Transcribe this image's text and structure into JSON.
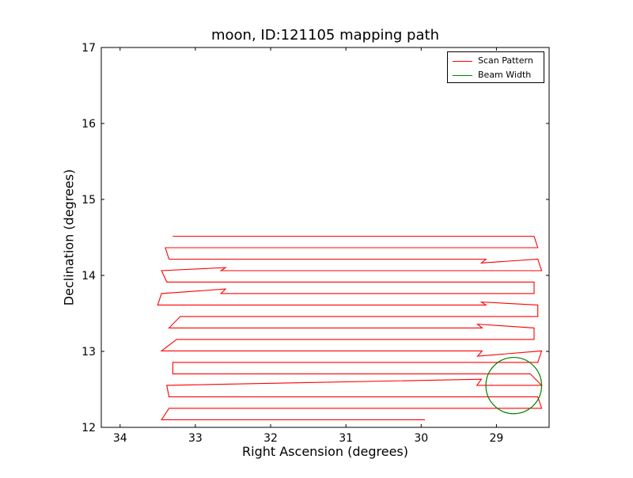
{
  "chart_data": {
    "type": "line",
    "title": "moon, ID:121105 mapping path",
    "xlabel": "Right Ascension (degrees)",
    "ylabel": "Declination (degrees)",
    "xlim": [
      34.25,
      28.3
    ],
    "ylim": [
      12,
      17
    ],
    "x_ticks": [
      34,
      33,
      32,
      31,
      30,
      29
    ],
    "y_ticks": [
      12,
      13,
      14,
      15,
      16,
      17
    ],
    "x_tick_labels": [
      "34",
      "33",
      "32",
      "31",
      "30",
      "29"
    ],
    "y_tick_labels": [
      "12",
      "13",
      "14",
      "15",
      "16",
      "17"
    ],
    "grid": false,
    "legend_position": "top-right",
    "series": [
      {
        "name": "Scan Pattern",
        "color": "#ff0000",
        "kind": "raster-scan",
        "start": {
          "x": 29.95,
          "y": 12.1
        },
        "row_y_start": 12.1,
        "row_step": 0.151,
        "row_count": 17,
        "row_left": [
          33.45,
          33.35,
          33.35,
          33.38,
          33.3,
          33.3,
          33.45,
          33.25,
          33.35,
          33.2,
          33.5,
          33.45,
          33.38,
          33.45,
          33.35,
          33.4,
          33.3
        ],
        "row_right": [
          28.5,
          28.4,
          28.45,
          28.4,
          28.55,
          28.45,
          28.4,
          28.5,
          28.5,
          28.45,
          28.45,
          28.5,
          28.5,
          28.4,
          28.45,
          28.45,
          28.5
        ],
        "kinks": [
          {
            "row": 3,
            "x": 29.2,
            "dy": 0.08
          },
          {
            "row": 6,
            "x": 29.25,
            "dy": -0.07
          },
          {
            "row": 8,
            "x": 29.25,
            "dy": 0.05
          },
          {
            "row": 10,
            "x": 29.2,
            "dy": 0.04
          },
          {
            "row": 11,
            "x": 32.6,
            "dy": 0.06
          },
          {
            "row": 13,
            "x": 32.6,
            "dy": 0.04
          },
          {
            "row": 14,
            "x": 29.2,
            "dy": -0.05
          }
        ]
      },
      {
        "name": "Beam Width",
        "color": "#008000",
        "kind": "circle",
        "center": {
          "x": 28.77,
          "y": 12.55
        },
        "radius": 0.37
      }
    ]
  }
}
